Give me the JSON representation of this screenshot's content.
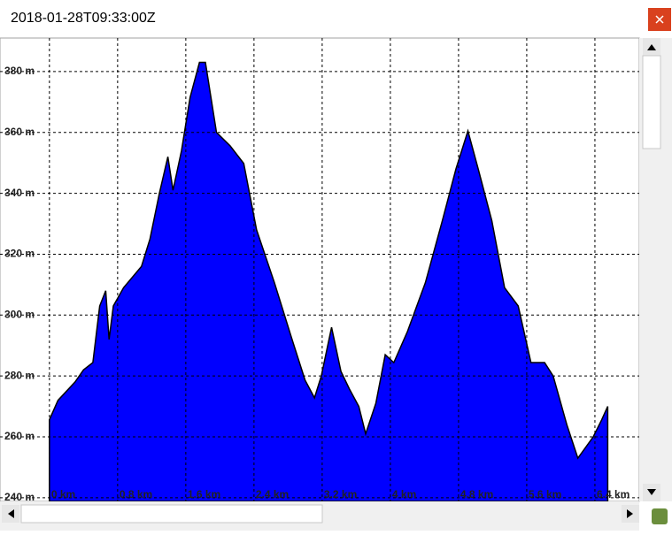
{
  "window": {
    "title": "2018-01-28T09:33:00Z"
  },
  "chart_data": {
    "type": "area",
    "color": "#0000ff",
    "grid": true,
    "xlim": [
      -0.58,
      6.92
    ],
    "ylim": [
      238.8,
      391
    ],
    "xticks": [
      {
        "value": 0,
        "label": "0 km"
      },
      {
        "value": 0.8,
        "label": "0.8 km"
      },
      {
        "value": 1.6,
        "label": "1.6 km"
      },
      {
        "value": 2.4,
        "label": "2.4 km"
      },
      {
        "value": 3.2,
        "label": "3.2 km"
      },
      {
        "value": 4,
        "label": "4 km"
      },
      {
        "value": 4.8,
        "label": "4.8 km"
      },
      {
        "value": 5.6,
        "label": "5.6 km"
      },
      {
        "value": 6.4,
        "label": "6.4 km"
      }
    ],
    "yticks": [
      {
        "value": 240,
        "label": "240 m"
      },
      {
        "value": 260,
        "label": "260 m"
      },
      {
        "value": 280,
        "label": "280 m"
      },
      {
        "value": 300,
        "label": "300 m"
      },
      {
        "value": 320,
        "label": "320 m"
      },
      {
        "value": 340,
        "label": "340 m"
      },
      {
        "value": 360,
        "label": "360 m"
      },
      {
        "value": 380,
        "label": "380 m"
      }
    ],
    "x": [
      0,
      0.1,
      0.3,
      0.4,
      0.51,
      0.59,
      0.66,
      0.7,
      0.75,
      0.87,
      1.08,
      1.18,
      1.29,
      1.39,
      1.45,
      1.55,
      1.65,
      1.76,
      1.83,
      1.96,
      2.12,
      2.28,
      2.43,
      2.64,
      2.85,
      3.0,
      3.11,
      3.19,
      3.31,
      3.42,
      3.52,
      3.63,
      3.71,
      3.83,
      3.94,
      4.04,
      4.2,
      4.41,
      4.61,
      4.77,
      4.91,
      5.03,
      5.19,
      5.34,
      5.5,
      5.65,
      5.81,
      5.91,
      6.07,
      6.2,
      6.38,
      6.48,
      6.55
    ],
    "values": [
      265.6,
      272,
      278,
      282,
      284.4,
      303,
      308,
      292,
      303,
      309,
      316,
      325,
      340,
      352,
      341,
      354,
      371.5,
      383,
      383,
      360,
      355.6,
      349.8,
      328,
      310.6,
      291.7,
      278.6,
      272.8,
      280,
      296,
      281.5,
      275.7,
      270,
      261,
      271,
      287,
      284.4,
      294.6,
      310.6,
      331,
      348,
      360.5,
      348,
      331,
      309,
      303,
      284.4,
      284.4,
      280,
      264,
      253,
      260,
      265.6,
      270
    ]
  }
}
